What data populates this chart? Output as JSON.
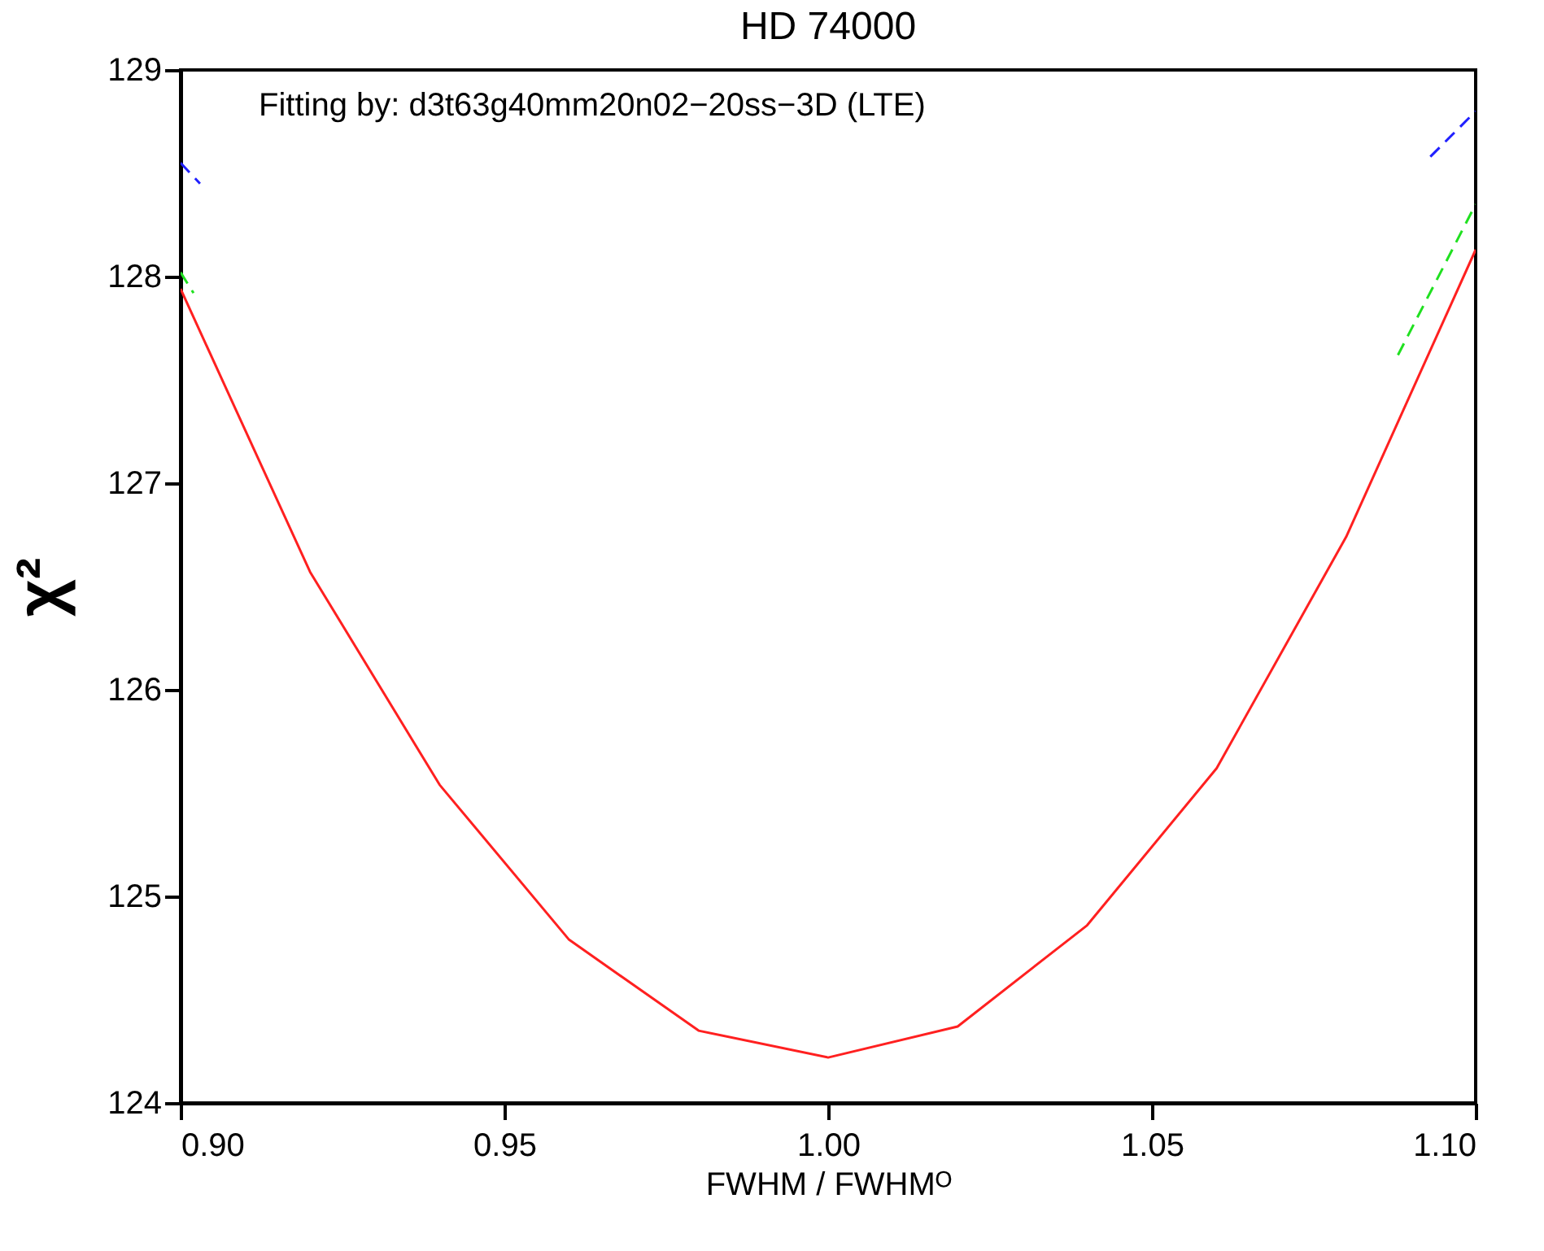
{
  "chart_data": {
    "type": "line",
    "title": "HD 74000",
    "xlabel": "FWHM / FWHMᴼ",
    "ylabel": "χ²",
    "annotations": [
      "Fitting by: d3t63g40mm20n02−20ss−3D (LTE)"
    ],
    "xlim": [
      0.9,
      1.1
    ],
    "xticks": [
      {
        "value": 0.9,
        "label": "0.90"
      },
      {
        "value": 0.95,
        "label": "0.95"
      },
      {
        "value": 1.0,
        "label": "1.00"
      },
      {
        "value": 1.05,
        "label": "1.05"
      },
      {
        "value": 1.1,
        "label": "1.10"
      }
    ],
    "ylim": [
      124,
      129
    ],
    "yticks": [
      124,
      125,
      126,
      127,
      128,
      129
    ],
    "grid": false,
    "series": [
      {
        "color": "#ff2020",
        "line_style": "solid",
        "x": [
          0.9,
          0.92,
          0.94,
          0.96,
          0.98,
          1.0,
          1.02,
          1.04,
          1.06,
          1.08,
          1.1
        ],
        "values": [
          127.94,
          126.57,
          125.54,
          124.79,
          124.35,
          124.22,
          124.37,
          124.86,
          125.62,
          126.74,
          128.13
        ]
      },
      {
        "color": "#2020ff",
        "line_style": "dashed",
        "x": [
          0.9,
          0.903
        ],
        "values": [
          128.55,
          128.45
        ]
      },
      {
        "color": "#2020ff",
        "line_style": "dashed",
        "x": [
          1.093,
          1.1
        ],
        "values": [
          128.58,
          128.8
        ]
      },
      {
        "color": "#20e020",
        "line_style": "dashed",
        "x": [
          0.9,
          0.902
        ],
        "values": [
          128.02,
          127.92
        ]
      },
      {
        "color": "#20e020",
        "line_style": "dashed",
        "x": [
          1.088,
          1.1
        ],
        "values": [
          127.62,
          128.35
        ]
      }
    ]
  }
}
